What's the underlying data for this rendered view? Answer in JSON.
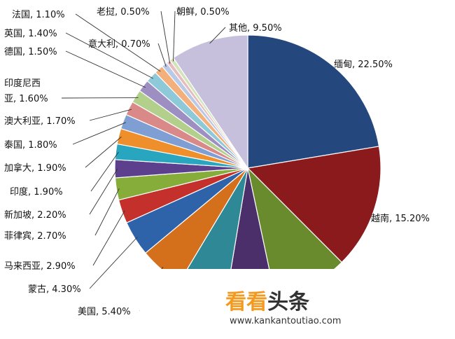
{
  "chart_data": {
    "type": "pie",
    "title": "",
    "series": [
      {
        "label": "缅甸, 22.50%",
        "value": 22.5,
        "color": "#24487e"
      },
      {
        "label": "越南, 15.20%",
        "value": 15.2,
        "color": "#8b1a1d"
      },
      {
        "label": "",
        "value": 9.2,
        "color": "#6a8a2e"
      },
      {
        "label": "",
        "value": 6.0,
        "color": "#4b2f6b"
      },
      {
        "label": "",
        "value": 6.0,
        "color": "#2f8896"
      },
      {
        "label": "美国, 5.40%",
        "value": 5.4,
        "color": "#d46f1c"
      },
      {
        "label": "蒙古, 4.30%",
        "value": 4.3,
        "color": "#2e63aa"
      },
      {
        "label": "马来西亚, 2.90%",
        "value": 2.9,
        "color": "#c4302b"
      },
      {
        "label": "菲律宾, 2.70%",
        "value": 2.7,
        "color": "#86ad3a"
      },
      {
        "label": "新加坡, 2.20%",
        "value": 2.2,
        "color": "#5c3f8d"
      },
      {
        "label": "印度, 1.90%",
        "value": 1.9,
        "color": "#29a6bf"
      },
      {
        "label": "加拿大, 1.90%",
        "value": 1.9,
        "color": "#ef8f2c"
      },
      {
        "label": "泰国, 1.80%",
        "value": 1.8,
        "color": "#7f9fd4"
      },
      {
        "label": "澳大利亚, 1.70%",
        "value": 1.7,
        "color": "#d98a88"
      },
      {
        "label": "印度尼西亚, 1.60%",
        "value": 1.6,
        "color": "#b3cf8c"
      },
      {
        "label": "德国, 1.50%",
        "value": 1.5,
        "color": "#9e8fc2"
      },
      {
        "label": "英国, 1.40%",
        "value": 1.4,
        "color": "#8dc9d8"
      },
      {
        "label": "法国, 1.10%",
        "value": 1.1,
        "color": "#f3b07c"
      },
      {
        "label": "意大利, 0.70%",
        "value": 0.7,
        "color": "#b9c9e6"
      },
      {
        "label": "老挝, 0.50%",
        "value": 0.5,
        "color": "#e7bcbc"
      },
      {
        "label": "朝鲜, 0.50%",
        "value": 0.5,
        "color": "#d5e3bd"
      },
      {
        "label": "其他, 9.50%",
        "value": 9.5,
        "color": "#c7c0dc"
      }
    ]
  },
  "watermark": {
    "brand_a": "看看",
    "brand_b": "头条",
    "url": "www.kankantoutiao.com",
    "color_a": "#f39a1e",
    "color_b": "#333333"
  }
}
